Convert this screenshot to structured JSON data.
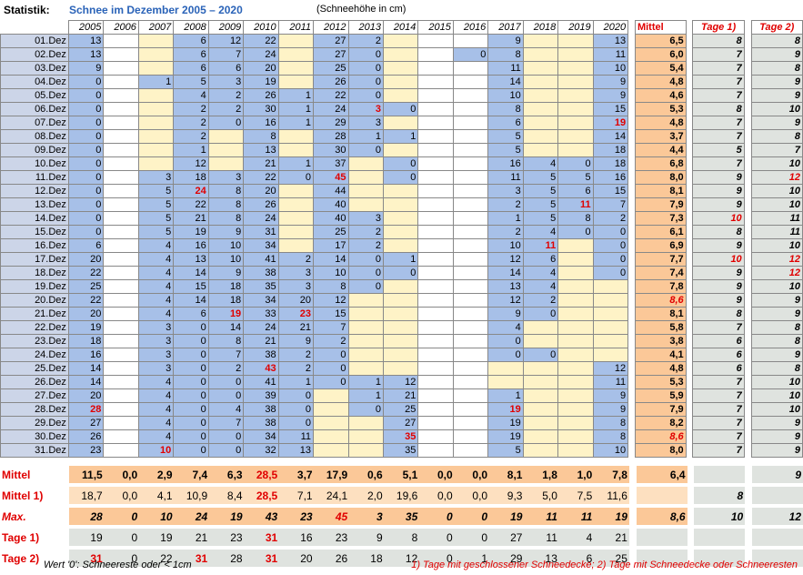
{
  "title": {
    "label": "Statistik:",
    "heading": "Schnee im Dezember 2005 – 2020",
    "unit_note": "(Schneehöhe in cm)"
  },
  "years": [
    "2005",
    "2006",
    "2007",
    "2008",
    "2009",
    "2010",
    "2011",
    "2012",
    "2013",
    "2014",
    "2015",
    "2016",
    "2017",
    "2018",
    "2019",
    "2020"
  ],
  "extra_headers": [
    "Mittel",
    "Tage 1)",
    "Tage 2)"
  ],
  "rows": [
    {
      "day": "01.Dez",
      "v": [
        "13",
        "",
        "",
        "6",
        "12",
        "22",
        "",
        "27",
        "2",
        "",
        "",
        "",
        "9",
        "",
        "",
        "13"
      ],
      "r": [],
      "m": "6,5",
      "t1": "8",
      "t2": "8"
    },
    {
      "day": "02.Dez",
      "v": [
        "13",
        "",
        "",
        "6",
        "7",
        "24",
        "",
        "27",
        "0",
        "",
        "",
        "0",
        "8",
        "",
        "",
        "11"
      ],
      "r": [],
      "m": "6,0",
      "t1": "7",
      "t2": "9"
    },
    {
      "day": "03.Dez",
      "v": [
        "9",
        "",
        "",
        "6",
        "6",
        "20",
        "",
        "25",
        "0",
        "",
        "",
        "",
        "11",
        "",
        "",
        "10"
      ],
      "r": [],
      "m": "5,4",
      "t1": "7",
      "t2": "8"
    },
    {
      "day": "04.Dez",
      "v": [
        "0",
        "",
        "1",
        "5",
        "3",
        "19",
        "",
        "26",
        "0",
        "",
        "",
        "",
        "14",
        "",
        "",
        "9"
      ],
      "r": [],
      "m": "4,8",
      "t1": "7",
      "t2": "9"
    },
    {
      "day": "05.Dez",
      "v": [
        "0",
        "",
        "",
        "4",
        "2",
        "26",
        "1",
        "22",
        "0",
        "",
        "",
        "",
        "10",
        "",
        "",
        "9"
      ],
      "r": [],
      "m": "4,6",
      "t1": "7",
      "t2": "9"
    },
    {
      "day": "06.Dez",
      "v": [
        "0",
        "",
        "",
        "2",
        "2",
        "30",
        "1",
        "24",
        "3",
        "0",
        "",
        "",
        "8",
        "",
        "",
        "15"
      ],
      "r": [
        8
      ],
      "m": "5,3",
      "t1": "8",
      "t2": "10"
    },
    {
      "day": "07.Dez",
      "v": [
        "0",
        "",
        "",
        "2",
        "0",
        "16",
        "1",
        "29",
        "3",
        "",
        "",
        "",
        "6",
        "",
        "",
        "19"
      ],
      "r": [
        15
      ],
      "m": "4,8",
      "t1": "7",
      "t2": "9"
    },
    {
      "day": "08.Dez",
      "v": [
        "0",
        "",
        "",
        "2",
        "",
        "8",
        "",
        "28",
        "1",
        "1",
        "",
        "",
        "5",
        "",
        "",
        "14"
      ],
      "r": [],
      "m": "3,7",
      "t1": "7",
      "t2": "8"
    },
    {
      "day": "09.Dez",
      "v": [
        "0",
        "",
        "",
        "1",
        "",
        "13",
        "",
        "30",
        "0",
        "",
        "",
        "",
        "5",
        "",
        "",
        "18"
      ],
      "r": [],
      "m": "4,4",
      "t1": "5",
      "t2": "7"
    },
    {
      "day": "10.Dez",
      "v": [
        "0",
        "",
        "",
        "12",
        "",
        "21",
        "1",
        "37",
        "",
        "0",
        "",
        "",
        "16",
        "4",
        "0",
        "18"
      ],
      "r": [],
      "m": "6,8",
      "t1": "7",
      "t2": "10"
    },
    {
      "day": "11.Dez",
      "v": [
        "0",
        "",
        "3",
        "18",
        "3",
        "22",
        "0",
        "45",
        "",
        "0",
        "",
        "",
        "11",
        "5",
        "5",
        "16"
      ],
      "r": [
        7
      ],
      "m": "8,0",
      "t1": "9",
      "t2": "12"
    },
    {
      "day": "12.Dez",
      "v": [
        "0",
        "",
        "5",
        "24",
        "8",
        "20",
        "",
        "44",
        "",
        "",
        "",
        "",
        "3",
        "5",
        "6",
        "15"
      ],
      "r": [
        3
      ],
      "m": "8,1",
      "t1": "9",
      "t2": "10"
    },
    {
      "day": "13.Dez",
      "v": [
        "0",
        "",
        "5",
        "22",
        "8",
        "26",
        "",
        "40",
        "",
        "",
        "",
        "",
        "2",
        "5",
        "11",
        "7"
      ],
      "r": [
        14
      ],
      "m": "7,9",
      "t1": "9",
      "t2": "10"
    },
    {
      "day": "14.Dez",
      "v": [
        "0",
        "",
        "5",
        "21",
        "8",
        "24",
        "",
        "40",
        "3",
        "",
        "",
        "",
        "1",
        "5",
        "8",
        "2"
      ],
      "r": [],
      "m": "7,3",
      "t1": "10",
      "t2": "11"
    },
    {
      "day": "15.Dez",
      "v": [
        "0",
        "",
        "5",
        "19",
        "9",
        "31",
        "",
        "25",
        "2",
        "",
        "",
        "",
        "2",
        "4",
        "0",
        "0"
      ],
      "r": [],
      "m": "6,1",
      "t1": "8",
      "t2": "11"
    },
    {
      "day": "16.Dez",
      "v": [
        "6",
        "",
        "4",
        "16",
        "10",
        "34",
        "",
        "17",
        "2",
        "",
        "",
        "",
        "10",
        "11",
        "",
        "0"
      ],
      "r": [
        13
      ],
      "m": "6,9",
      "t1": "9",
      "t2": "10"
    },
    {
      "day": "17.Dez",
      "v": [
        "20",
        "",
        "4",
        "13",
        "10",
        "41",
        "2",
        "14",
        "0",
        "1",
        "",
        "",
        "12",
        "6",
        "",
        "0"
      ],
      "r": [],
      "m": "7,7",
      "t1": "10",
      "t2": "12"
    },
    {
      "day": "18.Dez",
      "v": [
        "22",
        "",
        "4",
        "14",
        "9",
        "38",
        "3",
        "10",
        "0",
        "0",
        "",
        "",
        "14",
        "4",
        "",
        "0"
      ],
      "r": [],
      "m": "7,4",
      "t1": "9",
      "t2": "12"
    },
    {
      "day": "19.Dez",
      "v": [
        "25",
        "",
        "4",
        "15",
        "18",
        "35",
        "3",
        "8",
        "0",
        "",
        "",
        "",
        "13",
        "4",
        "",
        ""
      ],
      "r": [],
      "m": "7,8",
      "t1": "9",
      "t2": "10"
    },
    {
      "day": "20.Dez",
      "v": [
        "22",
        "",
        "4",
        "14",
        "18",
        "34",
        "20",
        "12",
        "",
        "",
        "",
        "",
        "12",
        "2",
        "",
        ""
      ],
      "r": [],
      "m": "8,6",
      "t1": "9",
      "t2": "9"
    },
    {
      "day": "21.Dez",
      "v": [
        "20",
        "",
        "4",
        "6",
        "19",
        "33",
        "23",
        "15",
        "",
        "",
        "",
        "",
        "9",
        "0",
        "",
        ""
      ],
      "r": [
        4,
        6
      ],
      "m": "8,1",
      "t1": "8",
      "t2": "9"
    },
    {
      "day": "22.Dez",
      "v": [
        "19",
        "",
        "3",
        "0",
        "14",
        "24",
        "21",
        "7",
        "",
        "",
        "",
        "",
        "4",
        "",
        "",
        ""
      ],
      "r": [],
      "m": "5,8",
      "t1": "7",
      "t2": "8"
    },
    {
      "day": "23.Dez",
      "v": [
        "18",
        "",
        "3",
        "0",
        "8",
        "21",
        "9",
        "2",
        "",
        "",
        "",
        "",
        "0",
        "",
        "",
        ""
      ],
      "r": [],
      "m": "3,8",
      "t1": "6",
      "t2": "8"
    },
    {
      "day": "24.Dez",
      "v": [
        "16",
        "",
        "3",
        "0",
        "7",
        "38",
        "2",
        "0",
        "",
        "",
        "",
        "",
        "0",
        "0",
        "",
        ""
      ],
      "r": [],
      "m": "4,1",
      "t1": "6",
      "t2": "9"
    },
    {
      "day": "25.Dez",
      "v": [
        "14",
        "",
        "3",
        "0",
        "2",
        "43",
        "2",
        "0",
        "",
        "",
        "",
        "",
        "",
        "",
        "",
        "12"
      ],
      "r": [
        5
      ],
      "m": "4,8",
      "t1": "6",
      "t2": "8"
    },
    {
      "day": "26.Dez",
      "v": [
        "14",
        "",
        "4",
        "0",
        "0",
        "41",
        "1",
        "0",
        "1",
        "12",
        "",
        "",
        "",
        "",
        "",
        "11"
      ],
      "r": [],
      "m": "5,3",
      "t1": "7",
      "t2": "10"
    },
    {
      "day": "27.Dez",
      "v": [
        "20",
        "",
        "4",
        "0",
        "0",
        "39",
        "0",
        "",
        "1",
        "21",
        "",
        "",
        "1",
        "",
        "",
        "9"
      ],
      "r": [],
      "m": "5,9",
      "t1": "7",
      "t2": "10"
    },
    {
      "day": "28.Dez",
      "v": [
        "28",
        "",
        "4",
        "0",
        "4",
        "38",
        "0",
        "",
        "0",
        "25",
        "",
        "",
        "19",
        "",
        "",
        "9"
      ],
      "r": [
        0,
        12
      ],
      "m": "7,9",
      "t1": "7",
      "t2": "10"
    },
    {
      "day": "29.Dez",
      "v": [
        "27",
        "",
        "4",
        "0",
        "7",
        "38",
        "0",
        "",
        "",
        "27",
        "",
        "",
        "19",
        "",
        "",
        "8"
      ],
      "r": [],
      "m": "8,2",
      "t1": "7",
      "t2": "9"
    },
    {
      "day": "30.Dez",
      "v": [
        "26",
        "",
        "4",
        "0",
        "0",
        "34",
        "11",
        "",
        "",
        "35",
        "",
        "",
        "19",
        "",
        "",
        "8"
      ],
      "r": [
        9
      ],
      "m": "8,6",
      "t1": "7",
      "t2": "9"
    },
    {
      "day": "31.Dez",
      "v": [
        "23",
        "",
        "10",
        "0",
        "0",
        "32",
        "13",
        "",
        "",
        "35",
        "",
        "",
        "5",
        "",
        "",
        "10"
      ],
      "r": [
        2
      ],
      "m": "8,0",
      "t1": "7",
      "t2": "9"
    }
  ],
  "summary": [
    {
      "label": "Mittel",
      "style": "orange",
      "bold": true,
      "italic": false,
      "v": [
        "11,5",
        "0,0",
        "2,9",
        "7,4",
        "6,3",
        "28,5",
        "3,7",
        "17,9",
        "0,6",
        "5,1",
        "0,0",
        "0,0",
        "8,1",
        "1,8",
        "1,0",
        "7,8"
      ],
      "r": [
        5
      ],
      "m": "6,4",
      "t1": "",
      "t2": "9"
    },
    {
      "label": "Mittel 1)",
      "style": "lightor",
      "bold": false,
      "italic": false,
      "v": [
        "18,7",
        "0,0",
        "4,1",
        "10,9",
        "8,4",
        "28,5",
        "7,1",
        "24,1",
        "2,0",
        "19,6",
        "0,0",
        "0,0",
        "9,3",
        "5,0",
        "7,5",
        "11,6"
      ],
      "r": [
        5
      ],
      "m": "",
      "t1": "8",
      "t2": ""
    },
    {
      "label": "Max.",
      "style": "orange",
      "bold": true,
      "italic": true,
      "v": [
        "28",
        "0",
        "10",
        "24",
        "19",
        "43",
        "23",
        "45",
        "3",
        "35",
        "0",
        "0",
        "19",
        "11",
        "11",
        "19"
      ],
      "r": [
        7
      ],
      "m": "8,6",
      "t1": "10",
      "t2": "12"
    },
    {
      "label": "Tage 1)",
      "style": "gray",
      "bold": false,
      "italic": false,
      "v": [
        "19",
        "0",
        "19",
        "21",
        "23",
        "31",
        "16",
        "23",
        "9",
        "8",
        "0",
        "0",
        "27",
        "11",
        "4",
        "21"
      ],
      "r": [
        5
      ],
      "m": "",
      "t1": "",
      "t2": ""
    },
    {
      "label": "Tage 2)",
      "style": "gray",
      "bold": false,
      "italic": false,
      "v": [
        "31",
        "0",
        "22",
        "31",
        "28",
        "31",
        "20",
        "26",
        "18",
        "12",
        "0",
        "1",
        "29",
        "13",
        "6",
        "25"
      ],
      "r": [
        0,
        3,
        5
      ],
      "m": "",
      "t1": "",
      "t2": ""
    }
  ],
  "footer": {
    "left": "Wert '0': Schneereste oder < 1cm",
    "right": "1) Tage mit geschlossener Schneedecke;  2) Tage mit Schneedecke oder Schneeresten"
  }
}
